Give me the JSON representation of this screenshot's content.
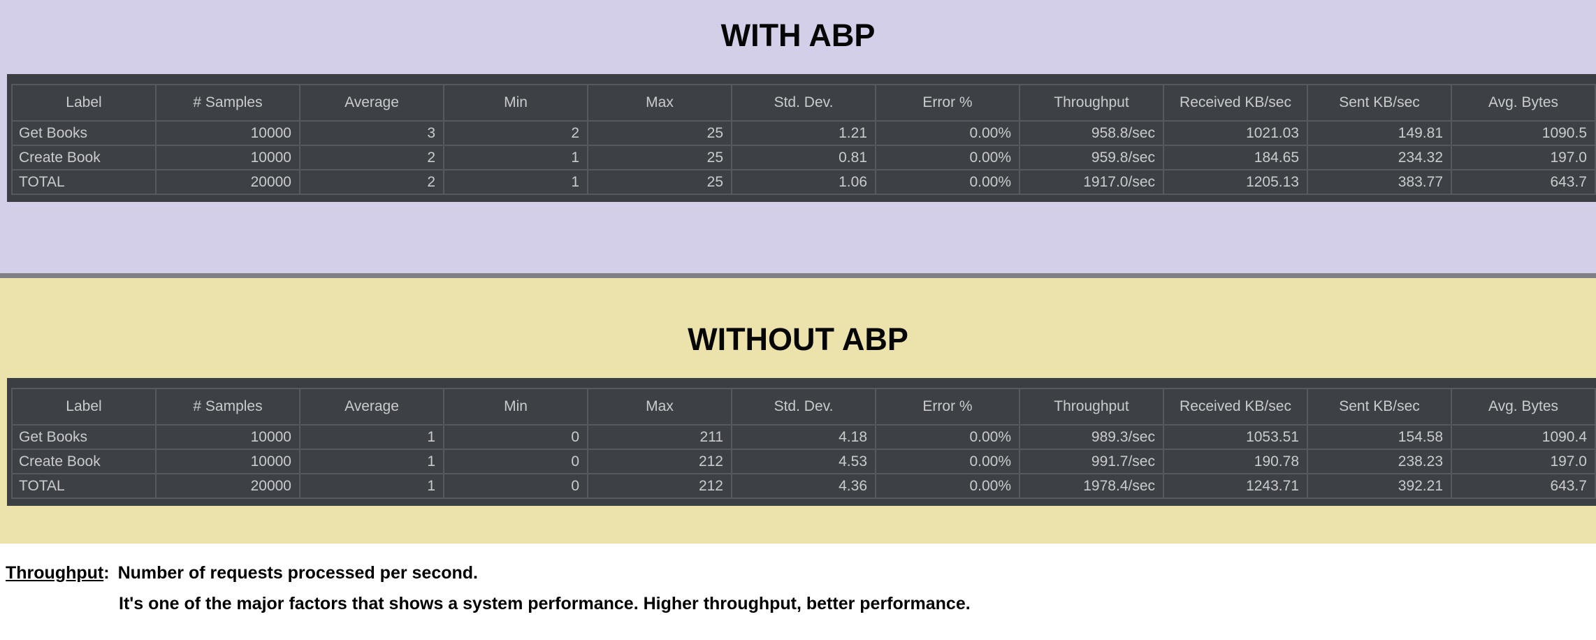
{
  "colors": {
    "section1_bg": "#d3cfe9",
    "section2_bg": "#ece2ab",
    "divider": "#7f8085",
    "panel_bg": "#3b3e42",
    "cell_bg": "#3d4145",
    "cell_border": "#56595d",
    "table_text": "#c9cbcd",
    "title_text": "#060606"
  },
  "sections": [
    {
      "id": "with-abp",
      "title": "WITH ABP",
      "table": {
        "columns": [
          "Label",
          "# Samples",
          "Average",
          "Min",
          "Max",
          "Std. Dev.",
          "Error %",
          "Throughput",
          "Received KB/sec",
          "Sent KB/sec",
          "Avg. Bytes"
        ],
        "rows": [
          [
            "Get Books",
            "10000",
            "3",
            "2",
            "25",
            "1.21",
            "0.00%",
            "958.8/sec",
            "1021.03",
            "149.81",
            "1090.5"
          ],
          [
            "Create Book",
            "10000",
            "2",
            "1",
            "25",
            "0.81",
            "0.00%",
            "959.8/sec",
            "184.65",
            "234.32",
            "197.0"
          ],
          [
            "TOTAL",
            "20000",
            "2",
            "1",
            "25",
            "1.06",
            "0.00%",
            "1917.0/sec",
            "1205.13",
            "383.77",
            "643.7"
          ]
        ]
      }
    },
    {
      "id": "without-abp",
      "title": "WITHOUT ABP",
      "table": {
        "columns": [
          "Label",
          "# Samples",
          "Average",
          "Min",
          "Max",
          "Std. Dev.",
          "Error %",
          "Throughput",
          "Received KB/sec",
          "Sent KB/sec",
          "Avg. Bytes"
        ],
        "rows": [
          [
            "Get Books",
            "10000",
            "1",
            "0",
            "211",
            "4.18",
            "0.00%",
            "989.3/sec",
            "1053.51",
            "154.58",
            "1090.4"
          ],
          [
            "Create Book",
            "10000",
            "1",
            "0",
            "212",
            "4.53",
            "0.00%",
            "991.7/sec",
            "190.78",
            "238.23",
            "197.0"
          ],
          [
            "TOTAL",
            "20000",
            "1",
            "0",
            "212",
            "4.36",
            "0.00%",
            "1978.4/sec",
            "1243.71",
            "392.21",
            "643.7"
          ]
        ]
      }
    }
  ],
  "footnote": {
    "term": "Throughput",
    "colon": ":",
    "line1": "Number of requests processed per second.",
    "line2": "It's one of the major factors that shows a system performance. Higher throughput, better performance."
  }
}
